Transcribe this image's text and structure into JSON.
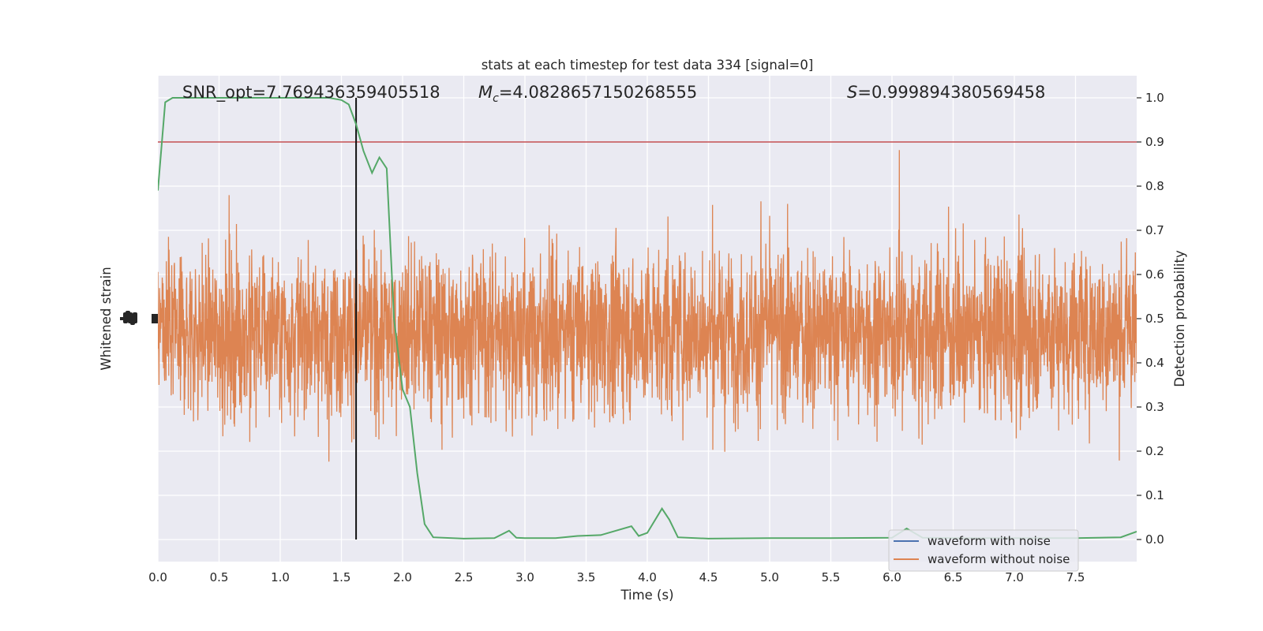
{
  "chart_data": {
    "type": "line",
    "title": "stats at each timestep for test data 334 [signal=0]",
    "xlabel": "Time (s)",
    "ylabel_left": "Whitened strain",
    "ylabel_right": "Detection probability",
    "xlim": [
      0.0,
      8.0
    ],
    "ylim_right": [
      -0.05,
      1.05
    ],
    "x_ticks": [
      "0.0",
      "0.5",
      "1.0",
      "1.5",
      "2.0",
      "2.5",
      "3.0",
      "3.5",
      "4.0",
      "4.5",
      "5.0",
      "5.5",
      "6.0",
      "6.5",
      "7.0",
      "7.5"
    ],
    "y_ticks_right": [
      "0.0",
      "0.1",
      "0.2",
      "0.3",
      "0.4",
      "0.5",
      "0.6",
      "0.7",
      "0.8",
      "0.9",
      "1.0"
    ],
    "grid": true,
    "legend_position": "lower-right",
    "annotations": {
      "snr": "SNR_opt=7.769436359405518",
      "mc_symbol": "M",
      "mc_sub": "c",
      "mc_value": "=4.0828657150268555",
      "s_symbol": "S",
      "s_value": "=0.999894380569458"
    },
    "threshold": 0.9,
    "marker_time": 1.62,
    "series": [
      {
        "name": "waveform with noise",
        "color": "#4c72b0"
      },
      {
        "name": "waveform without noise",
        "color": "#dd8452"
      }
    ],
    "detection_probability": {
      "color": "#55a868",
      "x": [
        0.0,
        0.06,
        0.12,
        0.25,
        0.5,
        0.75,
        0.9,
        1.0,
        1.25,
        1.4,
        1.5,
        1.56,
        1.62,
        1.68,
        1.75,
        1.81,
        1.87,
        1.93,
        2.0,
        2.06,
        2.12,
        2.18,
        2.25,
        2.5,
        2.75,
        2.87,
        2.93,
        3.0,
        3.25,
        3.43,
        3.62,
        3.87,
        3.93,
        4.0,
        4.12,
        4.18,
        4.25,
        4.5,
        5.0,
        5.5,
        6.0,
        6.12,
        6.25,
        6.5,
        7.0,
        7.5,
        7.87,
        8.0
      ],
      "y": [
        0.79,
        0.99,
        1.0,
        1.0,
        1.0,
        1.0,
        1.0,
        1.0,
        1.0,
        1.0,
        0.995,
        0.985,
        0.94,
        0.88,
        0.83,
        0.865,
        0.84,
        0.5,
        0.34,
        0.3,
        0.15,
        0.035,
        0.005,
        0.002,
        0.003,
        0.02,
        0.004,
        0.003,
        0.003,
        0.008,
        0.01,
        0.03,
        0.008,
        0.015,
        0.07,
        0.045,
        0.005,
        0.002,
        0.003,
        0.003,
        0.004,
        0.025,
        0.004,
        0.003,
        0.003,
        0.003,
        0.005,
        0.018
      ]
    }
  }
}
